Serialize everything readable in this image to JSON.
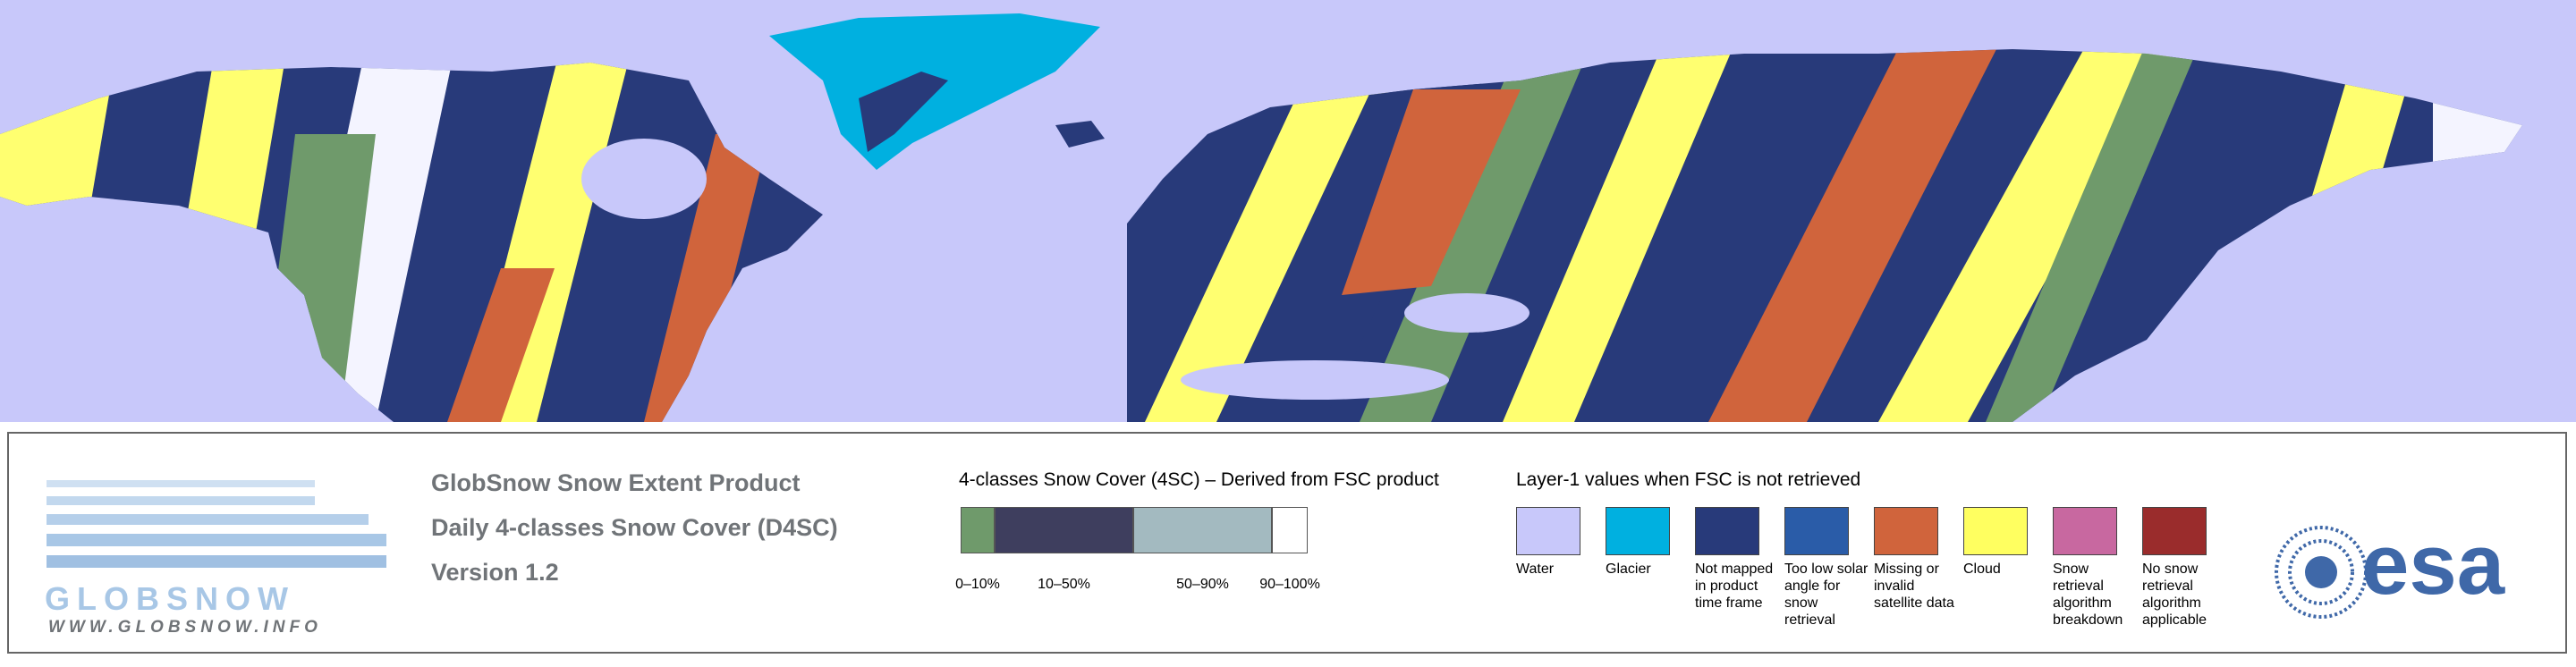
{
  "logo": {
    "name": "GLOBSNOW",
    "url": "WWW.GLOBSNOW.INFO"
  },
  "product": {
    "lines": [
      "GlobSnow Snow Extent Product",
      "Daily 4-classes Snow Cover (D4SC)",
      "Version 1.2"
    ]
  },
  "scale": {
    "title": "4-classes Snow Cover (4SC) – Derived from FSC product",
    "classes": [
      {
        "label": "0–10%",
        "color": "#6f9a6b"
      },
      {
        "label": "10–50%",
        "color": "#3e3e5e"
      },
      {
        "label": "50–90%",
        "color": "#a3bac0"
      },
      {
        "label": "90–100%",
        "color": "#ffffff"
      }
    ]
  },
  "layer1": {
    "title": "Layer-1 values when FSC is not retrieved",
    "items": [
      {
        "label": "Water",
        "color": "#c8c8fa"
      },
      {
        "label": "Glacier",
        "color": "#00b0e0"
      },
      {
        "label": "Not mapped in product time frame",
        "color": "#283a7a"
      },
      {
        "label": "Too low solar angle for snow retrieval",
        "color": "#2a5ca8"
      },
      {
        "label": "Missing or invalid satellite data",
        "color": "#d0643c"
      },
      {
        "label": "Cloud",
        "color": "#ffff60"
      },
      {
        "label": "Snow retrieval algorithm breakdown",
        "color": "#c868a0"
      },
      {
        "label": "No snow retrieval algorithm applicable",
        "color": "#9a2c2c"
      }
    ]
  },
  "esa": "esa"
}
